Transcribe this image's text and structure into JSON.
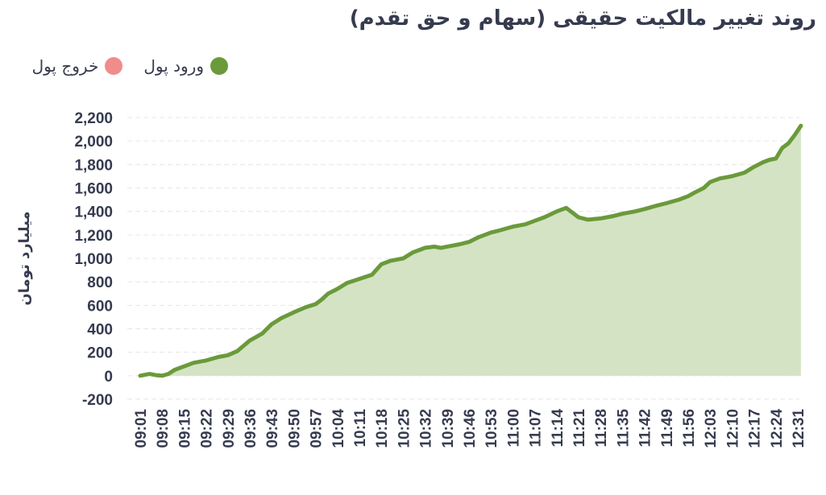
{
  "title": "روند تغییر مالکیت حقیقی (سهام و حق تقدم)",
  "colors": {
    "inflow": "#6a9a3a",
    "outflow": "#f08c8c",
    "area": "#d4e3c4",
    "grid": "#e6e6e6",
    "text": "#363b4f"
  },
  "legend": [
    {
      "label": "ورود پول",
      "color": "#6a9a3a"
    },
    {
      "label": "خروج پول",
      "color": "#f08c8c"
    }
  ],
  "chart_data": {
    "type": "area",
    "ylabel": "میلیارد تومان",
    "ylim": [
      -200,
      2200
    ],
    "ytick_values": [
      2200,
      2000,
      1800,
      1600,
      1400,
      1200,
      1000,
      800,
      600,
      400,
      200,
      0,
      -200
    ],
    "ytick_labels": [
      "2,200",
      "2,000",
      "1,800",
      "1,600",
      "1,400",
      "1,200",
      "1,000",
      "800",
      "600",
      "400",
      "200",
      "0",
      "-200"
    ],
    "xtick_labels": [
      "09:01",
      "09:08",
      "09:15",
      "09:22",
      "09:29",
      "09:36",
      "09:43",
      "09:50",
      "09:57",
      "10:04",
      "10:11",
      "10:18",
      "10:25",
      "10:32",
      "10:39",
      "10:46",
      "10:53",
      "11:00",
      "11:07",
      "11:14",
      "11:21",
      "11:28",
      "11:35",
      "11:42",
      "11:49",
      "11:56",
      "12:03",
      "12:10",
      "12:17",
      "12:24",
      "12:31"
    ],
    "grid": true,
    "legend_position": "top-left",
    "series": [
      {
        "name": "ورود پول",
        "x": [
          "09:01",
          "09:04",
          "09:06",
          "09:08",
          "09:10",
          "09:12",
          "09:15",
          "09:18",
          "09:22",
          "09:26",
          "09:29",
          "09:32",
          "09:34",
          "09:36",
          "09:38",
          "09:40",
          "09:43",
          "09:46",
          "09:50",
          "09:54",
          "09:57",
          "09:59",
          "10:01",
          "10:04",
          "10:07",
          "10:11",
          "10:15",
          "10:18",
          "10:21",
          "10:25",
          "10:28",
          "10:32",
          "10:35",
          "10:37",
          "10:39",
          "10:43",
          "10:46",
          "10:49",
          "10:53",
          "10:56",
          "11:00",
          "11:04",
          "11:07",
          "11:10",
          "11:14",
          "11:16",
          "11:17",
          "11:21",
          "11:24",
          "11:28",
          "11:32",
          "11:35",
          "11:39",
          "11:42",
          "11:46",
          "11:49",
          "11:53",
          "11:56",
          "11:58",
          "12:01",
          "12:03",
          "12:06",
          "12:10",
          "12:14",
          "12:17",
          "12:20",
          "12:22",
          "12:24",
          "12:26",
          "12:28",
          "12:30",
          "12:31",
          "12:32"
        ],
        "values": [
          0,
          15,
          5,
          0,
          15,
          50,
          80,
          110,
          130,
          160,
          175,
          210,
          255,
          300,
          330,
          360,
          440,
          490,
          540,
          585,
          610,
          650,
          700,
          740,
          790,
          825,
          860,
          950,
          980,
          1000,
          1050,
          1090,
          1100,
          1090,
          1100,
          1120,
          1140,
          1180,
          1220,
          1240,
          1270,
          1290,
          1320,
          1350,
          1400,
          1420,
          1430,
          1350,
          1330,
          1340,
          1360,
          1380,
          1400,
          1420,
          1450,
          1470,
          1500,
          1530,
          1560,
          1600,
          1650,
          1680,
          1700,
          1730,
          1780,
          1820,
          1840,
          1850,
          1940,
          1980,
          2050,
          2090,
          2130
        ]
      }
    ]
  }
}
